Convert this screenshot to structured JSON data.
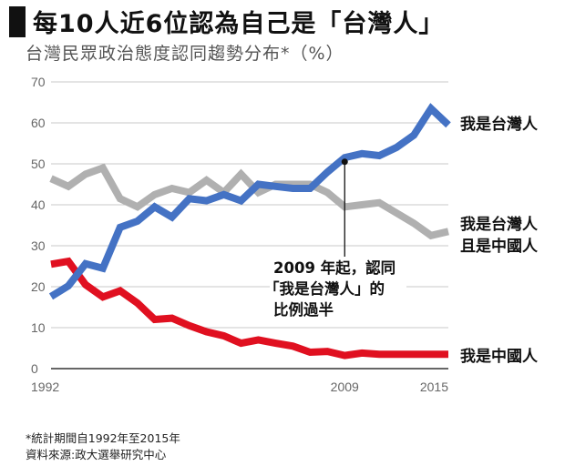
{
  "header": {
    "title": "每10人近6位認為自己是「台灣人」",
    "subtitle": "台灣民眾政治態度認同趨勢分布*（%）"
  },
  "chart_data": {
    "type": "line",
    "title": "每10人近6位認為自己是「台灣人」",
    "subtitle": "台灣民眾政治態度認同趨勢分布*（%）",
    "xlim": [
      1992,
      2015
    ],
    "ylim": [
      0,
      70
    ],
    "yticks": [
      0,
      10,
      20,
      30,
      40,
      50,
      60,
      70
    ],
    "xtick_labels": [
      "1992",
      "2009",
      "2015"
    ],
    "xticks": [
      1992,
      2009,
      2015
    ],
    "grid": true,
    "x": [
      1992,
      1993,
      1994,
      1995,
      1996,
      1997,
      1998,
      1999,
      2000,
      2001,
      2002,
      2003,
      2004,
      2005,
      2006,
      2007,
      2008,
      2009,
      2010,
      2011,
      2012,
      2013,
      2014,
      2015
    ],
    "series": [
      {
        "name": "我是台灣人",
        "color": "#4472c4",
        "values": [
          17.6,
          20.2,
          25.6,
          24.5,
          34.5,
          36.0,
          39.5,
          37.0,
          41.5,
          41.0,
          42.5,
          41.0,
          45.0,
          44.5,
          44.0,
          44.0,
          48.0,
          51.5,
          52.5,
          52.0,
          54.0,
          57.0,
          63.5,
          59.5
        ]
      },
      {
        "name": "我是台灣人且是中國人",
        "label_lines": [
          "我是台灣人",
          "且是中國人"
        ],
        "color": "#b0b0b0",
        "values": [
          46.4,
          44.5,
          47.5,
          49.0,
          41.5,
          39.5,
          42.5,
          44.0,
          43.0,
          46.0,
          43.0,
          47.5,
          43.0,
          45.0,
          45.0,
          45.0,
          43.0,
          39.5,
          40.0,
          40.5,
          38.0,
          35.5,
          32.5,
          33.5
        ]
      },
      {
        "name": "我是中國人",
        "color": "#e01020",
        "values": [
          25.5,
          26.2,
          20.5,
          17.5,
          19.0,
          16.0,
          12.0,
          12.3,
          10.5,
          9.0,
          8.0,
          6.2,
          7.0,
          6.2,
          5.5,
          4.0,
          4.2,
          3.2,
          3.8,
          3.5,
          3.5,
          3.5,
          3.5,
          3.5
        ]
      }
    ],
    "annotation": {
      "lines": [
        "2009 年起，認同",
        "「我是台灣人」的",
        "比例過半"
      ],
      "point": {
        "x": 2009,
        "y": 50.5
      }
    }
  },
  "footnotes": [
    "*統計期間自1992年至2015年",
    "資料來源:政大選舉研究中心"
  ]
}
